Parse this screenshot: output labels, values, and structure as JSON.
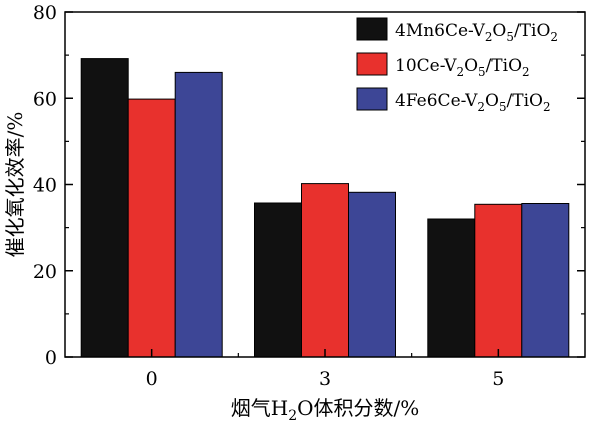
{
  "chart_data": {
    "type": "bar",
    "categories": [
      "0",
      "3",
      "5"
    ],
    "series": [
      {
        "name": "4Mn6Ce-V2O5/TiO2",
        "values": [
          69.2,
          35.7,
          32.0
        ],
        "color": "#111111"
      },
      {
        "name": "10Ce-V2O5/TiO2",
        "values": [
          59.8,
          40.2,
          35.4
        ],
        "color": "#e8312d"
      },
      {
        "name": "4Fe6Ce-V2O5/TiO2",
        "values": [
          66.0,
          38.2,
          35.6
        ],
        "color": "#3d4696"
      }
    ],
    "xlabel": "烟气H2O体积分数/%",
    "ylabel": "催化氧化效率/%",
    "ylim": [
      0,
      80
    ],
    "yticks": [
      0,
      20,
      40,
      60,
      80
    ],
    "grid": false,
    "legend_position": "top-right"
  }
}
